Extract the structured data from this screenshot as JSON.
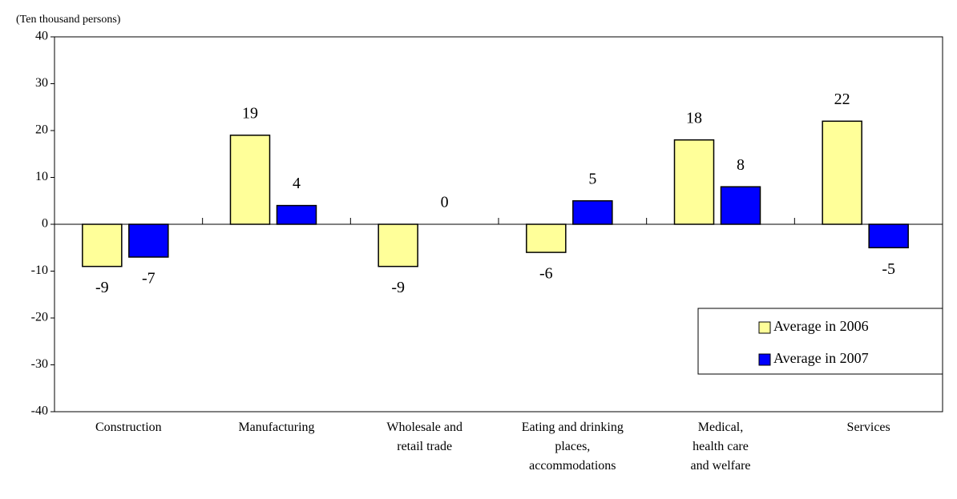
{
  "chart_data": {
    "type": "bar",
    "y_axis_label": "(Ten thousand persons)",
    "categories": [
      "Construction",
      "Manufacturing",
      "Wholesale and retail trade",
      "Eating and drinking places, accommodations",
      "Medical, health care and welfare",
      "Services"
    ],
    "series": [
      {
        "name": "Average in 2006",
        "color": "#ffff99",
        "values": [
          -9,
          19,
          -9,
          -6,
          18,
          22
        ]
      },
      {
        "name": "Average in 2007",
        "color": "#0000ff",
        "values": [
          -7,
          4,
          0,
          5,
          8,
          -5
        ]
      }
    ],
    "ylim": [
      -40,
      40
    ],
    "yticks": [
      -40,
      -30,
      -20,
      -10,
      0,
      10,
      20,
      30,
      40
    ],
    "grid": false,
    "legend": "lower right"
  }
}
